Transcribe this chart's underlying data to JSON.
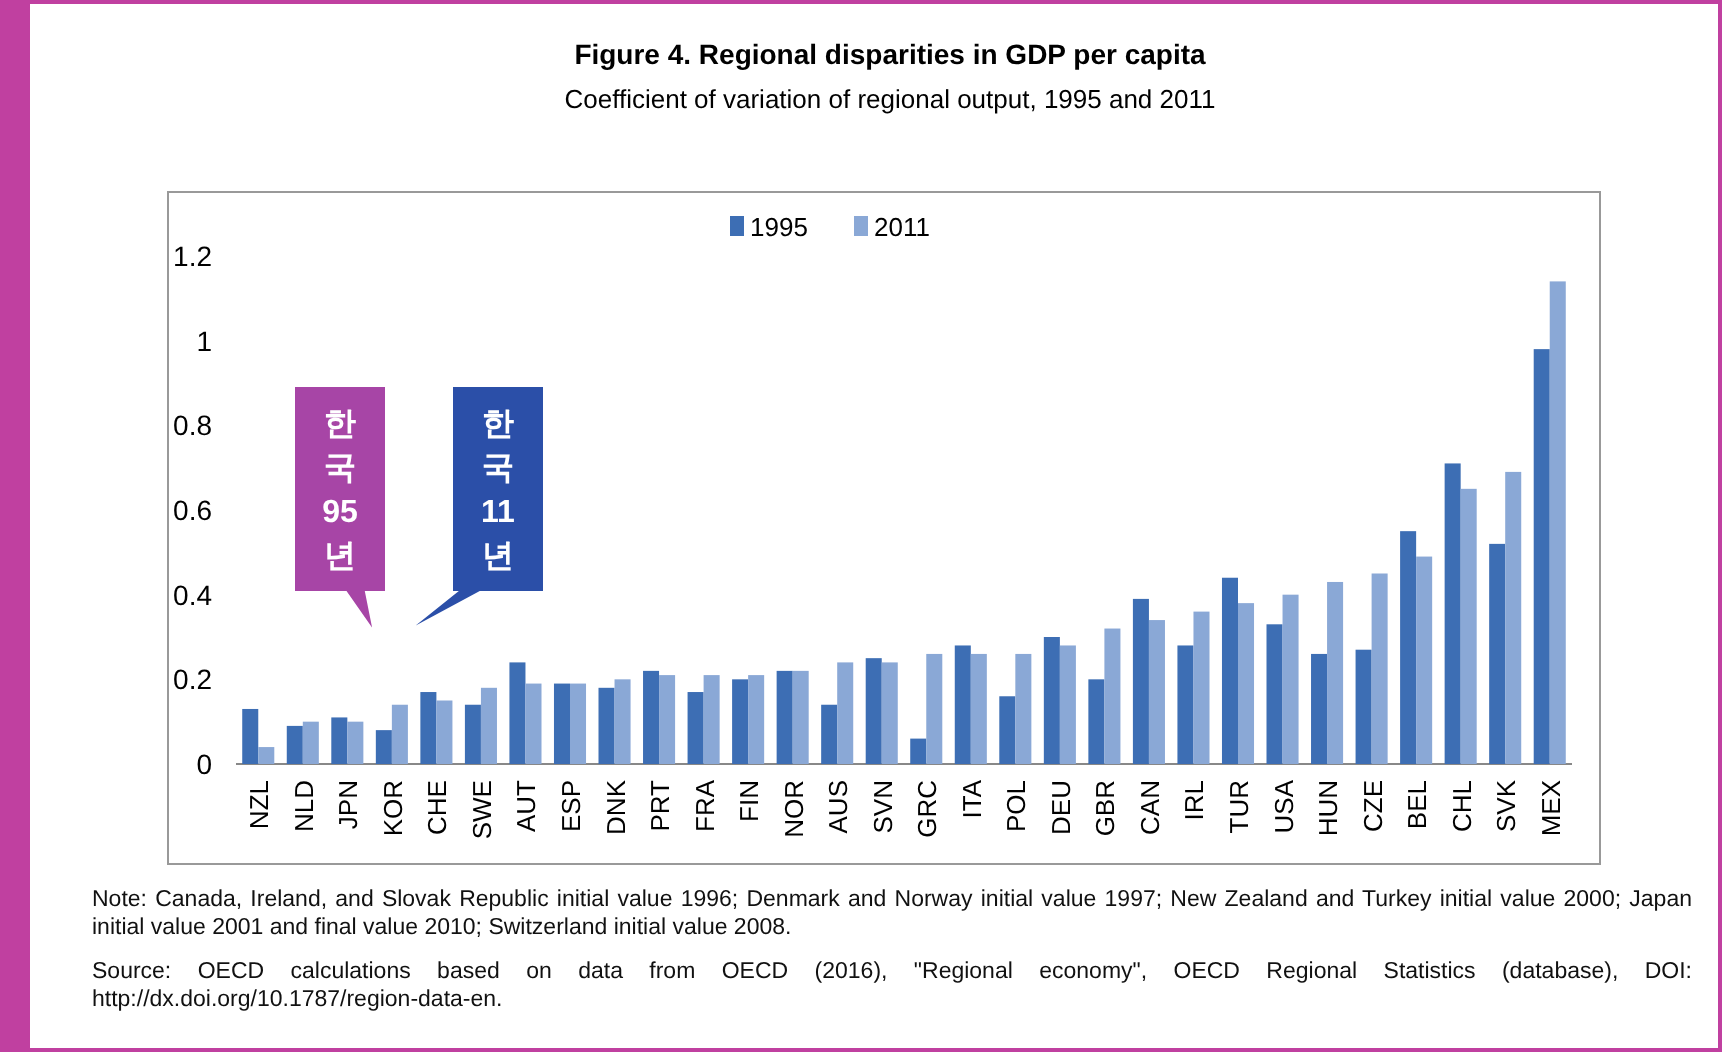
{
  "chart_data": {
    "type": "bar",
    "title": "Figure 4.  Regional disparities in GDP per capita",
    "subtitle": "Coefficient of variation of regional output, 1995 and 2011",
    "categories": [
      "NZL",
      "NLD",
      "JPN",
      "KOR",
      "CHE",
      "SWE",
      "AUT",
      "ESP",
      "DNK",
      "PRT",
      "FRA",
      "FIN",
      "NOR",
      "AUS",
      "SVN",
      "GRC",
      "ITA",
      "POL",
      "DEU",
      "GBR",
      "CAN",
      "IRL",
      "TUR",
      "USA",
      "HUN",
      "CZE",
      "BEL",
      "CHL",
      "SVK",
      "MEX"
    ],
    "series": [
      {
        "name": "1995",
        "color": "#3d6eb4",
        "values": [
          0.13,
          0.09,
          0.11,
          0.08,
          0.17,
          0.14,
          0.24,
          0.19,
          0.18,
          0.22,
          0.17,
          0.2,
          0.22,
          0.14,
          0.25,
          0.06,
          0.28,
          0.16,
          0.3,
          0.2,
          0.39,
          0.28,
          0.44,
          0.33,
          0.26,
          0.27,
          0.55,
          0.71,
          0.52,
          0.98
        ]
      },
      {
        "name": "2011",
        "color": "#8aa8d6",
        "values": [
          0.04,
          0.1,
          0.1,
          0.14,
          0.15,
          0.18,
          0.19,
          0.19,
          0.2,
          0.21,
          0.21,
          0.21,
          0.22,
          0.24,
          0.24,
          0.26,
          0.26,
          0.26,
          0.28,
          0.32,
          0.34,
          0.36,
          0.38,
          0.4,
          0.43,
          0.45,
          0.49,
          0.65,
          0.69,
          1.14
        ]
      }
    ],
    "ylim": [
      0,
      1.2
    ],
    "yticks": [
      0,
      0.2,
      0.4,
      0.6,
      0.8,
      1,
      1.2
    ],
    "grid": false,
    "legend": "top",
    "annotations": [
      "한국95년",
      "한국11년",
      "Note: Canada, Ireland, and Slovak Republic initial value 1996; Denmark and Norway initial value 1997; New Zealand and Turkey initial value 2000; Japan initial value 2001 and final value 2010; Switzerland initial value 2008.",
      "Source: OECD calculations based on data from OECD (2016), \"Regional economy\", OECD Regional Statistics (database), DOI: http://dx.doi.org/10.1787/region-data-en."
    ]
  }
}
